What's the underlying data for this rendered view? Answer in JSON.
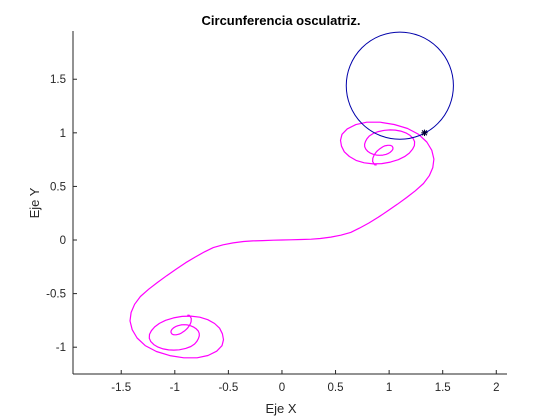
{
  "chart_data": {
    "type": "line",
    "title": "Circunferencia osculatriz.",
    "xlabel": "Eje X",
    "ylabel": "Eje Y",
    "xlim": [
      -1.95,
      2.1
    ],
    "ylim": [
      -1.25,
      1.95
    ],
    "xticks": [
      -1.5,
      -1,
      -0.5,
      0,
      0.5,
      1,
      1.5,
      2
    ],
    "xtick_labels": [
      "-1.5",
      "-1",
      "-0.5",
      "0",
      "0.5",
      "1",
      "1.5",
      "2"
    ],
    "yticks": [
      -1,
      -0.5,
      0,
      0.5,
      1,
      1.5
    ],
    "ytick_labels": [
      "-1",
      "-0.5",
      "0",
      "0.5",
      "1",
      "1.5"
    ],
    "grid": false,
    "series": [
      {
        "kind": "curve",
        "color": "#ff00ff",
        "x": [
          0.879,
          0.867,
          0.859,
          0.853,
          0.846,
          0.847,
          0.848,
          0.853,
          0.859,
          0.868,
          0.878,
          0.891,
          0.907,
          0.926,
          0.94,
          0.956,
          0.972,
          0.988,
          1.003,
          1.016,
          1.026,
          1.032,
          1.036,
          1.034,
          1.026,
          1.011,
          0.993,
          0.97,
          0.942,
          0.913,
          0.882,
          0.852,
          0.822,
          0.799,
          0.782,
          0.772,
          0.771,
          0.78,
          0.794,
          0.815,
          0.85,
          0.898,
          0.958,
          1.009,
          1.058,
          1.109,
          1.157,
          1.196,
          1.224,
          1.238,
          1.236,
          1.218,
          1.188,
          1.144,
          1.086,
          1.012,
          0.932,
          0.851,
          0.767,
          0.692,
          0.629,
          0.582,
          0.556,
          0.546,
          0.56,
          0.609,
          0.69,
          0.792,
          0.916,
          1.047,
          1.172,
          1.276,
          1.352,
          1.398,
          1.418,
          1.408,
          1.375,
          1.321,
          1.244,
          1.162,
          1.076,
          0.989,
          0.898,
          0.811,
          0.724,
          0.641,
          0.549,
          0.456,
          0.358,
          0.273,
          0.181,
          0.078,
          0.0,
          -0.078,
          -0.181,
          -0.273,
          -0.358,
          -0.456,
          -0.549,
          -0.641,
          -0.724,
          -0.811,
          -0.898,
          -0.989,
          -1.076,
          -1.162,
          -1.244,
          -1.321,
          -1.375,
          -1.408,
          -1.418,
          -1.398,
          -1.352,
          -1.276,
          -1.172,
          -1.047,
          -0.916,
          -0.792,
          -0.69,
          -0.609,
          -0.56,
          -0.546,
          -0.556,
          -0.582,
          -0.629,
          -0.692,
          -0.767,
          -0.851,
          -0.932,
          -1.012,
          -1.086,
          -1.144,
          -1.188,
          -1.218,
          -1.236,
          -1.238,
          -1.224,
          -1.196,
          -1.157,
          -1.109,
          -1.058,
          -1.009,
          -0.958,
          -0.898,
          -0.85,
          -0.815,
          -0.794,
          -0.78,
          -0.771,
          -0.772,
          -0.782,
          -0.799,
          -0.822,
          -0.852,
          -0.882,
          -0.913,
          -0.942,
          -0.97,
          -0.993,
          -1.011,
          -1.026,
          -1.034,
          -1.036,
          -1.032,
          -1.026,
          -1.016,
          -1.003,
          -0.988,
          -0.972,
          -0.956,
          -0.94,
          -0.926,
          -0.907,
          -0.891,
          -0.878,
          -0.868,
          -0.859,
          -0.853,
          -0.848,
          -0.847,
          -0.846,
          -0.853,
          -0.859,
          -0.867,
          -0.879
        ],
        "y": [
          0.701,
          0.701,
          0.709,
          0.72,
          0.733,
          0.747,
          0.762,
          0.776,
          0.79,
          0.804,
          0.818,
          0.832,
          0.846,
          0.859,
          0.869,
          0.877,
          0.881,
          0.884,
          0.884,
          0.882,
          0.877,
          0.869,
          0.858,
          0.845,
          0.833,
          0.819,
          0.808,
          0.799,
          0.792,
          0.79,
          0.792,
          0.8,
          0.813,
          0.829,
          0.848,
          0.87,
          0.894,
          0.92,
          0.945,
          0.97,
          0.993,
          1.011,
          1.024,
          1.027,
          1.025,
          1.016,
          0.999,
          0.976,
          0.948,
          0.916,
          0.881,
          0.846,
          0.811,
          0.778,
          0.749,
          0.727,
          0.713,
          0.71,
          0.72,
          0.743,
          0.779,
          0.823,
          0.875,
          0.93,
          0.986,
          1.037,
          1.077,
          1.099,
          1.099,
          1.078,
          1.04,
          0.985,
          0.914,
          0.837,
          0.755,
          0.676,
          0.6,
          0.527,
          0.459,
          0.396,
          0.333,
          0.273,
          0.212,
          0.159,
          0.111,
          0.071,
          0.045,
          0.027,
          0.014,
          0.008,
          0.005,
          0.002,
          0.0,
          -0.002,
          -0.005,
          -0.008,
          -0.014,
          -0.027,
          -0.045,
          -0.071,
          -0.111,
          -0.159,
          -0.212,
          -0.273,
          -0.333,
          -0.396,
          -0.459,
          -0.527,
          -0.6,
          -0.676,
          -0.755,
          -0.837,
          -0.914,
          -0.985,
          -1.04,
          -1.078,
          -1.099,
          -1.099,
          -1.077,
          -1.037,
          -0.986,
          -0.93,
          -0.875,
          -0.823,
          -0.779,
          -0.743,
          -0.72,
          -0.71,
          -0.713,
          -0.727,
          -0.749,
          -0.778,
          -0.811,
          -0.846,
          -0.881,
          -0.916,
          -0.948,
          -0.976,
          -0.999,
          -1.016,
          -1.025,
          -1.027,
          -1.024,
          -1.011,
          -0.993,
          -0.97,
          -0.945,
          -0.92,
          -0.894,
          -0.87,
          -0.848,
          -0.829,
          -0.813,
          -0.8,
          -0.792,
          -0.79,
          -0.792,
          -0.799,
          -0.808,
          -0.819,
          -0.833,
          -0.845,
          -0.858,
          -0.869,
          -0.877,
          -0.882,
          -0.884,
          -0.884,
          -0.881,
          -0.877,
          -0.869,
          -0.859,
          -0.846,
          -0.832,
          -0.818,
          -0.804,
          -0.79,
          -0.776,
          -0.762,
          -0.747,
          -0.733,
          -0.72,
          -0.709,
          -0.701,
          -0.701
        ]
      },
      {
        "kind": "osculating-circle",
        "color": "#0000aa",
        "center": [
          1.1,
          1.44
        ],
        "radius": 0.5
      },
      {
        "kind": "marker",
        "color": "#000033",
        "x": [
          1.33
        ],
        "y": [
          1.0
        ]
      }
    ]
  }
}
